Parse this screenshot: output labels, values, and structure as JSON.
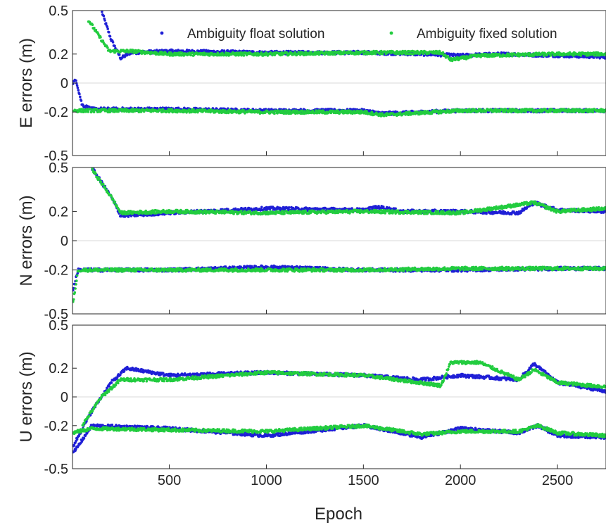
{
  "chart_data": {
    "type": "scatter",
    "xlabel": "Epoch",
    "xlim": [
      1,
      2750
    ],
    "x_ticks": [
      500,
      1000,
      1500,
      2000,
      2500
    ],
    "legend": {
      "placement": "top-right",
      "entries": [
        {
          "name": "Ambiguity float solution",
          "color": "#1f1fd6"
        },
        {
          "name": "Ambiguity fixed solution",
          "color": "#22cc3f"
        }
      ]
    },
    "grid": "zero-line only",
    "panels": [
      {
        "ylabel": "E errors (m)",
        "ylim": [
          -0.5,
          0.5
        ],
        "y_ticks": [
          0.5,
          0.2,
          0,
          -0.2,
          -0.5
        ],
        "y_tick_labels": [
          "0.5",
          "0.2",
          "0",
          "-0.2",
          "-0.5"
        ],
        "series": [
          {
            "name": "Ambiguity float solution",
            "upper": [
              [
                150,
                0.5
              ],
              [
                200,
                0.3
              ],
              [
                250,
                0.17
              ],
              [
                300,
                0.21
              ],
              [
                500,
                0.22
              ],
              [
                1000,
                0.21
              ],
              [
                1500,
                0.21
              ],
              [
                1800,
                0.2
              ],
              [
                2000,
                0.19
              ],
              [
                2200,
                0.2
              ],
              [
                2500,
                0.19
              ],
              [
                2750,
                0.18
              ]
            ],
            "lower": [
              [
                1,
                0.0
              ],
              [
                20,
                0.02
              ],
              [
                50,
                -0.15
              ],
              [
                100,
                -0.18
              ],
              [
                500,
                -0.18
              ],
              [
                1000,
                -0.19
              ],
              [
                1500,
                -0.19
              ],
              [
                1600,
                -0.21
              ],
              [
                2000,
                -0.19
              ],
              [
                2500,
                -0.19
              ],
              [
                2750,
                -0.19
              ]
            ]
          },
          {
            "name": "Ambiguity fixed solution",
            "upper": [
              [
                80,
                0.44
              ],
              [
                190,
                0.22
              ],
              [
                300,
                0.22
              ],
              [
                500,
                0.2
              ],
              [
                1000,
                0.2
              ],
              [
                1500,
                0.21
              ],
              [
                1900,
                0.21
              ],
              [
                1950,
                0.16
              ],
              [
                2100,
                0.19
              ],
              [
                2500,
                0.2
              ],
              [
                2750,
                0.2
              ]
            ],
            "lower": [
              [
                1,
                -0.19
              ],
              [
                100,
                -0.19
              ],
              [
                500,
                -0.19
              ],
              [
                1000,
                -0.2
              ],
              [
                1500,
                -0.2
              ],
              [
                1600,
                -0.22
              ],
              [
                2000,
                -0.19
              ],
              [
                2500,
                -0.19
              ],
              [
                2750,
                -0.19
              ]
            ]
          }
        ]
      },
      {
        "ylabel": "N errors (m)",
        "ylim": [
          -0.5,
          0.5
        ],
        "y_ticks": [
          0.5,
          0.2,
          0,
          -0.2,
          -0.5
        ],
        "y_tick_labels": [
          "0.5",
          "0.2",
          "0",
          "-0.2",
          "-0.5"
        ],
        "series": [
          {
            "name": "Ambiguity float solution",
            "upper": [
              [
                100,
                0.5
              ],
              [
                200,
                0.3
              ],
              [
                250,
                0.17
              ],
              [
                500,
                0.19
              ],
              [
                1000,
                0.22
              ],
              [
                1500,
                0.21
              ],
              [
                1580,
                0.23
              ],
              [
                1700,
                0.2
              ],
              [
                2000,
                0.2
              ],
              [
                2300,
                0.19
              ],
              [
                2380,
                0.26
              ],
              [
                2500,
                0.21
              ],
              [
                2750,
                0.2
              ]
            ],
            "lower": [
              [
                1,
                -0.35
              ],
              [
                30,
                -0.2
              ],
              [
                100,
                -0.2
              ],
              [
                500,
                -0.2
              ],
              [
                1000,
                -0.18
              ],
              [
                1500,
                -0.2
              ],
              [
                2000,
                -0.2
              ],
              [
                2500,
                -0.19
              ],
              [
                2750,
                -0.19
              ]
            ]
          },
          {
            "name": "Ambiguity fixed solution",
            "upper": [
              [
                100,
                0.49
              ],
              [
                200,
                0.3
              ],
              [
                250,
                0.19
              ],
              [
                500,
                0.2
              ],
              [
                1000,
                0.19
              ],
              [
                1500,
                0.2
              ],
              [
                2000,
                0.19
              ],
              [
                2380,
                0.26
              ],
              [
                2500,
                0.2
              ],
              [
                2750,
                0.22
              ]
            ],
            "lower": [
              [
                1,
                -0.45
              ],
              [
                30,
                -0.2
              ],
              [
                100,
                -0.2
              ],
              [
                500,
                -0.2
              ],
              [
                1000,
                -0.2
              ],
              [
                1500,
                -0.2
              ],
              [
                2000,
                -0.19
              ],
              [
                2500,
                -0.19
              ],
              [
                2750,
                -0.19
              ]
            ]
          }
        ]
      },
      {
        "ylabel": "U errors (m)",
        "ylim": [
          -0.5,
          0.5
        ],
        "y_ticks": [
          0.5,
          0.2,
          0,
          -0.2,
          -0.5
        ],
        "y_tick_labels": [
          "0.5",
          "0.2",
          "0",
          "-0.2",
          "-0.5"
        ],
        "series": [
          {
            "name": "Ambiguity float solution",
            "upper": [
              [
                1,
                -0.35
              ],
              [
                100,
                -0.1
              ],
              [
                200,
                0.1
              ],
              [
                280,
                0.2
              ],
              [
                500,
                0.15
              ],
              [
                1000,
                0.17
              ],
              [
                1500,
                0.15
              ],
              [
                1800,
                0.12
              ],
              [
                2000,
                0.15
              ],
              [
                2300,
                0.12
              ],
              [
                2380,
                0.23
              ],
              [
                2500,
                0.1
              ],
              [
                2750,
                0.04
              ]
            ],
            "lower": [
              [
                1,
                -0.4
              ],
              [
                100,
                -0.2
              ],
              [
                500,
                -0.22
              ],
              [
                1000,
                -0.27
              ],
              [
                1500,
                -0.2
              ],
              [
                1800,
                -0.28
              ],
              [
                2000,
                -0.22
              ],
              [
                2300,
                -0.25
              ],
              [
                2400,
                -0.2
              ],
              [
                2500,
                -0.27
              ],
              [
                2750,
                -0.28
              ]
            ]
          },
          {
            "name": "Ambiguity fixed solution",
            "upper": [
              [
                50,
                -0.2
              ],
              [
                150,
                0.0
              ],
              [
                250,
                0.12
              ],
              [
                500,
                0.12
              ],
              [
                1000,
                0.17
              ],
              [
                1500,
                0.15
              ],
              [
                1900,
                0.08
              ],
              [
                1950,
                0.24
              ],
              [
                2100,
                0.24
              ],
              [
                2300,
                0.12
              ],
              [
                2380,
                0.19
              ],
              [
                2500,
                0.1
              ],
              [
                2750,
                0.07
              ]
            ],
            "lower": [
              [
                1,
                -0.25
              ],
              [
                100,
                -0.22
              ],
              [
                500,
                -0.23
              ],
              [
                1000,
                -0.24
              ],
              [
                1500,
                -0.2
              ],
              [
                1800,
                -0.26
              ],
              [
                2000,
                -0.24
              ],
              [
                2300,
                -0.24
              ],
              [
                2400,
                -0.2
              ],
              [
                2500,
                -0.25
              ],
              [
                2750,
                -0.27
              ]
            ]
          }
        ]
      }
    ]
  }
}
